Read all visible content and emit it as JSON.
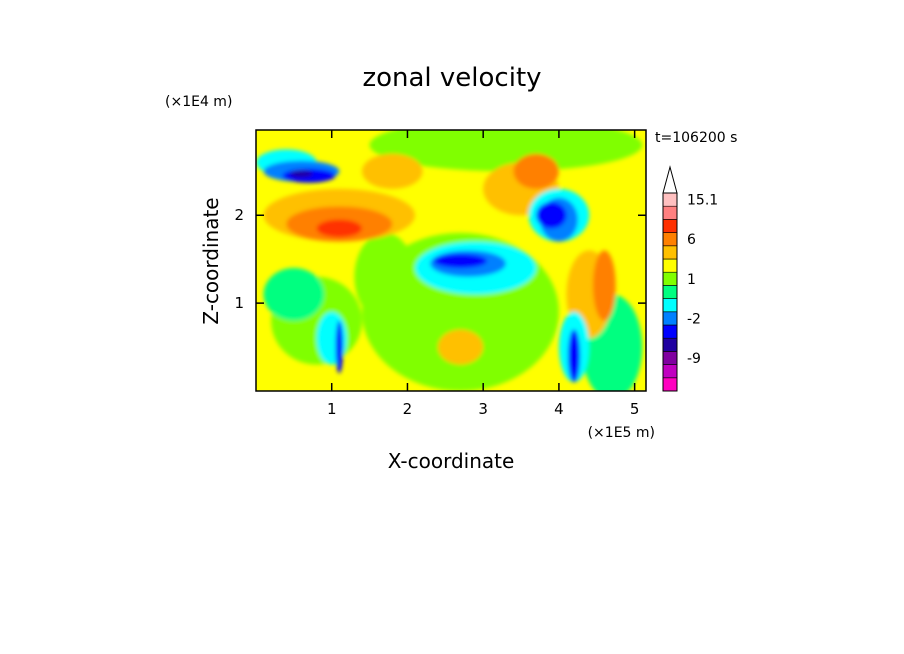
{
  "chart_data": {
    "type": "heatmap",
    "title": "zonal velocity",
    "xlabel": "X-coordinate",
    "ylabel": "Z-coordinate",
    "x_unit": "(×1E5 m)",
    "y_unit": "(×1E4 m)",
    "time_label": "t=106200 s",
    "xlim": [
      0,
      5.15
    ],
    "ylim": [
      0,
      2.97
    ],
    "x_ticks": [
      "1",
      "2",
      "3",
      "4",
      "5"
    ],
    "x_tick_values": [
      1,
      2,
      3,
      4,
      5
    ],
    "y_ticks": [
      "1",
      "2"
    ],
    "y_tick_values": [
      1,
      2
    ],
    "grid": false,
    "legend": "colorbar at right",
    "colorbar": {
      "levels": [
        {
          "color": "#ff00c0",
          "label": ""
        },
        {
          "color": "#c000c0",
          "label": ""
        },
        {
          "color": "#8000a0",
          "label": "-9"
        },
        {
          "color": "#2000a0",
          "label": ""
        },
        {
          "color": "#0000ff",
          "label": ""
        },
        {
          "color": "#0080ff",
          "label": "-2"
        },
        {
          "color": "#00ffff",
          "label": ""
        },
        {
          "color": "#00ff80",
          "label": ""
        },
        {
          "color": "#80ff00",
          "label": "1"
        },
        {
          "color": "#ffff00",
          "label": ""
        },
        {
          "color": "#ffc000",
          "label": ""
        },
        {
          "color": "#ff8000",
          "label": "6"
        },
        {
          "color": "#ff3000",
          "label": ""
        },
        {
          "color": "#ff8080",
          "label": ""
        },
        {
          "color": "#ffc0c0",
          "label": "15.1"
        }
      ]
    },
    "field": {
      "background_color": "#ffff00",
      "patches": [
        {
          "color": "#80ff00",
          "x": 2.7,
          "z": 0.9,
          "rx": 1.3,
          "rz": 0.9
        },
        {
          "color": "#80ff00",
          "x": 0.8,
          "z": 0.8,
          "rx": 0.6,
          "rz": 0.5
        },
        {
          "color": "#80ff00",
          "x": 3.3,
          "z": 2.8,
          "rx": 1.8,
          "rz": 0.3
        },
        {
          "color": "#80ff00",
          "x": 1.7,
          "z": 1.3,
          "rx": 0.4,
          "rz": 0.5
        },
        {
          "color": "#00ff80",
          "x": 4.7,
          "z": 0.5,
          "rx": 0.4,
          "rz": 0.6
        },
        {
          "color": "#00ff80",
          "x": 0.5,
          "z": 1.1,
          "rx": 0.4,
          "rz": 0.3
        },
        {
          "color": "#ffc000",
          "x": 1.1,
          "z": 2.0,
          "rx": 1.0,
          "rz": 0.3
        },
        {
          "color": "#ffc000",
          "x": 2.7,
          "z": 0.5,
          "rx": 0.3,
          "rz": 0.2
        },
        {
          "color": "#ffc000",
          "x": 1.8,
          "z": 2.5,
          "rx": 0.4,
          "rz": 0.2
        },
        {
          "color": "#ffc000",
          "x": 4.4,
          "z": 1.1,
          "rx": 0.3,
          "rz": 0.5
        },
        {
          "color": "#ffc000",
          "x": 3.5,
          "z": 2.3,
          "rx": 0.5,
          "rz": 0.3
        },
        {
          "color": "#ff8000",
          "x": 1.1,
          "z": 1.9,
          "rx": 0.7,
          "rz": 0.2
        },
        {
          "color": "#ff8000",
          "x": 3.7,
          "z": 2.5,
          "rx": 0.3,
          "rz": 0.2
        },
        {
          "color": "#ff8000",
          "x": 4.6,
          "z": 1.2,
          "rx": 0.15,
          "rz": 0.4
        },
        {
          "color": "#ff3000",
          "x": 1.1,
          "z": 1.85,
          "rx": 0.3,
          "rz": 0.1
        },
        {
          "color": "#00ffff",
          "x": 2.9,
          "z": 1.4,
          "rx": 0.8,
          "rz": 0.3
        },
        {
          "color": "#00ffff",
          "x": 0.4,
          "z": 2.6,
          "rx": 0.4,
          "rz": 0.15
        },
        {
          "color": "#00ffff",
          "x": 4.0,
          "z": 2.0,
          "rx": 0.4,
          "rz": 0.3
        },
        {
          "color": "#00ffff",
          "x": 1.0,
          "z": 0.6,
          "rx": 0.2,
          "rz": 0.3
        },
        {
          "color": "#00ffff",
          "x": 4.2,
          "z": 0.5,
          "rx": 0.2,
          "rz": 0.4
        },
        {
          "color": "#0080ff",
          "x": 2.8,
          "z": 1.45,
          "rx": 0.5,
          "rz": 0.15
        },
        {
          "color": "#0080ff",
          "x": 0.6,
          "z": 2.5,
          "rx": 0.5,
          "rz": 0.12
        },
        {
          "color": "#0080ff",
          "x": 4.0,
          "z": 1.95,
          "rx": 0.25,
          "rz": 0.25
        },
        {
          "color": "#0000ff",
          "x": 2.7,
          "z": 1.48,
          "rx": 0.35,
          "rz": 0.08
        },
        {
          "color": "#0000ff",
          "x": 0.7,
          "z": 2.45,
          "rx": 0.35,
          "rz": 0.08
        },
        {
          "color": "#0000ff",
          "x": 3.9,
          "z": 2.0,
          "rx": 0.2,
          "rz": 0.15
        },
        {
          "color": "#0000ff",
          "x": 4.2,
          "z": 0.4,
          "rx": 0.08,
          "rz": 0.3
        },
        {
          "color": "#0000ff",
          "x": 1.1,
          "z": 0.5,
          "rx": 0.05,
          "rz": 0.3
        },
        {
          "color": "#2000a0",
          "x": 0.6,
          "z": 2.47,
          "rx": 0.15,
          "rz": 0.04
        }
      ]
    }
  }
}
